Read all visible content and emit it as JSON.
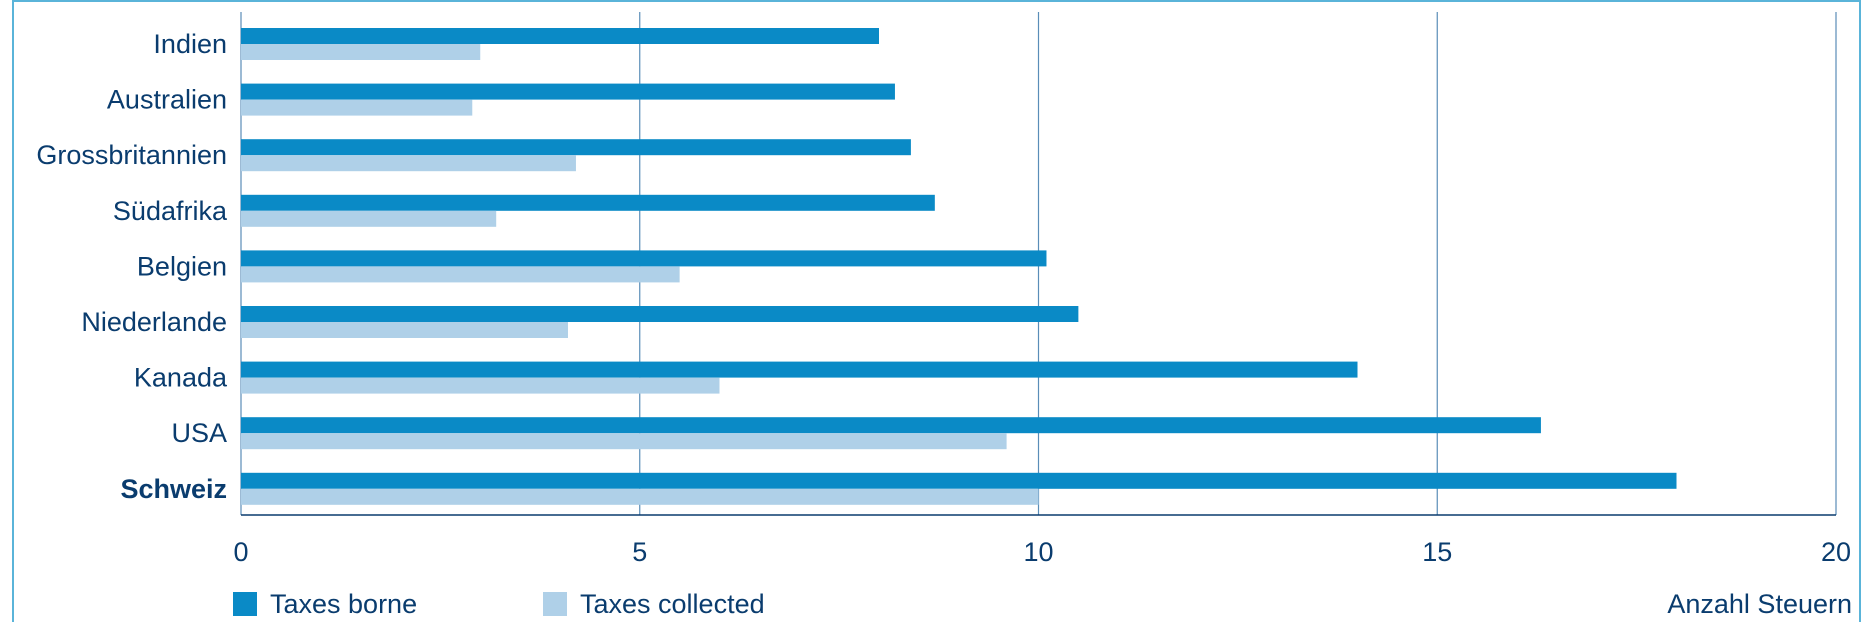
{
  "chart_data": {
    "type": "bar",
    "orientation": "horizontal",
    "categories": [
      "Indien",
      "Australien",
      "Grossbritannien",
      "Südafrika",
      "Belgien",
      "Niederlande",
      "Kanada",
      "USA",
      "Schweiz"
    ],
    "highlight_category": "Schweiz",
    "series": [
      {
        "name": "Taxes borne",
        "color": "#0a8ac6",
        "values": [
          8,
          8.2,
          8.4,
          8.7,
          10.1,
          10.5,
          14,
          16.3,
          18
        ]
      },
      {
        "name": "Taxes collected",
        "color": "#afd0e8",
        "values": [
          3,
          2.9,
          4.2,
          3.2,
          5.5,
          4.1,
          6,
          9.6,
          10
        ]
      }
    ],
    "xlabel": "Anzahl Steuern",
    "xlim": [
      0,
      20
    ],
    "xticks": [
      "0",
      "5",
      "10",
      "15",
      "20"
    ],
    "grid": "vertical",
    "legend": "bottom-left"
  }
}
